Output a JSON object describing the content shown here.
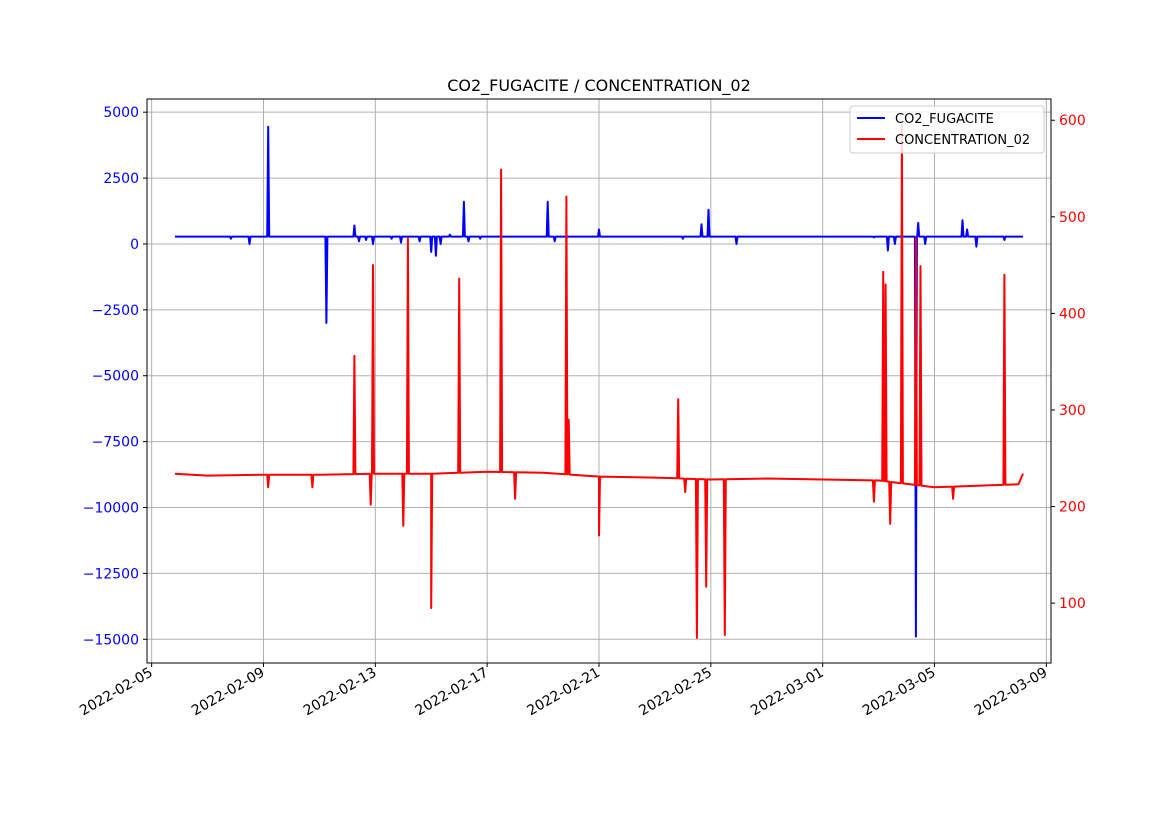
{
  "chart_data": {
    "type": "line",
    "title": "CO2_FUGACITE / CONCENTRATION_02",
    "xlabel": "",
    "ylabel_left": "",
    "ylabel_right": "",
    "x_ticks": [
      "2022-02-05",
      "2022-02-09",
      "2022-02-13",
      "2022-02-17",
      "2022-02-21",
      "2022-02-25",
      "2022-03-01",
      "2022-03-05",
      "2022-03-09"
    ],
    "x_range": [
      "2022-02-04T20:00",
      "2022-03-09T04:00"
    ],
    "y_left_ticks": [
      5000,
      2500,
      0,
      -2500,
      -5000,
      -7500,
      -10000,
      -12500,
      -15000
    ],
    "y_left_tick_labels": [
      "5000",
      "2500",
      "0",
      "−2500",
      "−5000",
      "−7500",
      "−10000",
      "−12500",
      "−15000"
    ],
    "y_left_range": [
      -15900,
      5500
    ],
    "y_right_ticks": [
      600,
      500,
      400,
      300,
      200,
      100
    ],
    "y_right_tick_labels": [
      "600",
      "500",
      "400",
      "300",
      "200",
      "100"
    ],
    "y_right_range": [
      38,
      622
    ],
    "grid": true,
    "legend_position": "top-right",
    "colors": {
      "CO2_FUGACITE": "#0000ff",
      "CONCENTRATION_02": "#ff0000",
      "left_axis": "#0000ff",
      "right_axis": "#ff0000",
      "grid": "#b0b0b0"
    },
    "series": [
      {
        "name": "CO2_FUGACITE",
        "axis": "left",
        "baseline": 280,
        "x_start": "2022-02-05T20:00",
        "x_end": "2022-03-08T04:00",
        "spikes": [
          {
            "x": "2022-02-07T20:00",
            "y": 200
          },
          {
            "x": "2022-02-08T12:00",
            "y": 0
          },
          {
            "x": "2022-02-09T04:00",
            "y": 4450
          },
          {
            "x": "2022-02-11T06:00",
            "y": -3000
          },
          {
            "x": "2022-02-12T06:00",
            "y": 700
          },
          {
            "x": "2022-02-12T10:00",
            "y": 100
          },
          {
            "x": "2022-02-12T16:00",
            "y": 150
          },
          {
            "x": "2022-02-12T22:00",
            "y": 0
          },
          {
            "x": "2022-02-13T14:00",
            "y": 200
          },
          {
            "x": "2022-02-13T22:00",
            "y": 50
          },
          {
            "x": "2022-02-14T14:00",
            "y": 100
          },
          {
            "x": "2022-02-15T00:00",
            "y": -300
          },
          {
            "x": "2022-02-15T04:00",
            "y": -450
          },
          {
            "x": "2022-02-15T08:00",
            "y": 0
          },
          {
            "x": "2022-02-15T16:00",
            "y": 350
          },
          {
            "x": "2022-02-16T04:00",
            "y": 1600
          },
          {
            "x": "2022-02-16T08:00",
            "y": 100
          },
          {
            "x": "2022-02-16T18:00",
            "y": 200
          },
          {
            "x": "2022-02-19T04:00",
            "y": 1600
          },
          {
            "x": "2022-02-19T10:00",
            "y": 100
          },
          {
            "x": "2022-02-21T00:00",
            "y": 550
          },
          {
            "x": "2022-02-24T00:00",
            "y": 200
          },
          {
            "x": "2022-02-24T16:00",
            "y": 750
          },
          {
            "x": "2022-02-24T22:00",
            "y": 1300
          },
          {
            "x": "2022-02-25T22:00",
            "y": 0
          },
          {
            "x": "2022-03-02T20:00",
            "y": 250
          },
          {
            "x": "2022-03-03T08:00",
            "y": -250
          },
          {
            "x": "2022-03-03T14:00",
            "y": 0
          },
          {
            "x": "2022-03-04T08:00",
            "y": -14900
          },
          {
            "x": "2022-03-04T10:00",
            "y": 800
          },
          {
            "x": "2022-03-04T16:00",
            "y": 0
          },
          {
            "x": "2022-03-06T00:00",
            "y": 900
          },
          {
            "x": "2022-03-06T04:00",
            "y": 550
          },
          {
            "x": "2022-03-06T12:00",
            "y": -100
          },
          {
            "x": "2022-03-07T12:00",
            "y": 150
          }
        ]
      },
      {
        "name": "CONCENTRATION_02",
        "axis": "right",
        "baseline_points": [
          {
            "x": "2022-02-05T20:00",
            "y": 234
          },
          {
            "x": "2022-02-07T00:00",
            "y": 232
          },
          {
            "x": "2022-02-09T00:00",
            "y": 233
          },
          {
            "x": "2022-02-11T00:00",
            "y": 233
          },
          {
            "x": "2022-02-13T00:00",
            "y": 234
          },
          {
            "x": "2022-02-15T00:00",
            "y": 234
          },
          {
            "x": "2022-02-17T00:00",
            "y": 236
          },
          {
            "x": "2022-02-19T00:00",
            "y": 235
          },
          {
            "x": "2022-02-21T00:00",
            "y": 231
          },
          {
            "x": "2022-02-23T00:00",
            "y": 230
          },
          {
            "x": "2022-02-25T00:00",
            "y": 228
          },
          {
            "x": "2022-02-27T00:00",
            "y": 229
          },
          {
            "x": "2022-03-01T00:00",
            "y": 228
          },
          {
            "x": "2022-03-03T00:00",
            "y": 227
          },
          {
            "x": "2022-03-05T00:00",
            "y": 220
          },
          {
            "x": "2022-03-07T00:00",
            "y": 222
          },
          {
            "x": "2022-03-08T00:00",
            "y": 223
          },
          {
            "x": "2022-03-08T04:00",
            "y": 234
          }
        ],
        "spikes": [
          {
            "x": "2022-02-09T04:00",
            "y": 220
          },
          {
            "x": "2022-02-10T18:00",
            "y": 220
          },
          {
            "x": "2022-02-12T06:00",
            "y": 356
          },
          {
            "x": "2022-02-12T20:00",
            "y": 202
          },
          {
            "x": "2022-02-12T22:00",
            "y": 450
          },
          {
            "x": "2022-02-14T00:00",
            "y": 180
          },
          {
            "x": "2022-02-14T04:00",
            "y": 478
          },
          {
            "x": "2022-02-15T00:00",
            "y": 95
          },
          {
            "x": "2022-02-16T00:00",
            "y": 436
          },
          {
            "x": "2022-02-17T12:00",
            "y": 549
          },
          {
            "x": "2022-02-18T00:00",
            "y": 208
          },
          {
            "x": "2022-02-19T20:00",
            "y": 521
          },
          {
            "x": "2022-02-19T22:00",
            "y": 290
          },
          {
            "x": "2022-02-21T00:00",
            "y": 170
          },
          {
            "x": "2022-02-23T20:00",
            "y": 311
          },
          {
            "x": "2022-02-24T02:00",
            "y": 215
          },
          {
            "x": "2022-02-24T12:00",
            "y": 64
          },
          {
            "x": "2022-02-24T20:00",
            "y": 117
          },
          {
            "x": "2022-02-25T12:00",
            "y": 67
          },
          {
            "x": "2022-03-02T20:00",
            "y": 205
          },
          {
            "x": "2022-03-03T04:00",
            "y": 443
          },
          {
            "x": "2022-03-03T06:00",
            "y": 430
          },
          {
            "x": "2022-03-03T10:00",
            "y": 182
          },
          {
            "x": "2022-03-03T20:00",
            "y": 595
          },
          {
            "x": "2022-03-04T08:00",
            "y": 478
          },
          {
            "x": "2022-03-04T12:00",
            "y": 449
          },
          {
            "x": "2022-03-05T16:00",
            "y": 208
          },
          {
            "x": "2022-03-07T12:00",
            "y": 440
          }
        ]
      }
    ]
  }
}
